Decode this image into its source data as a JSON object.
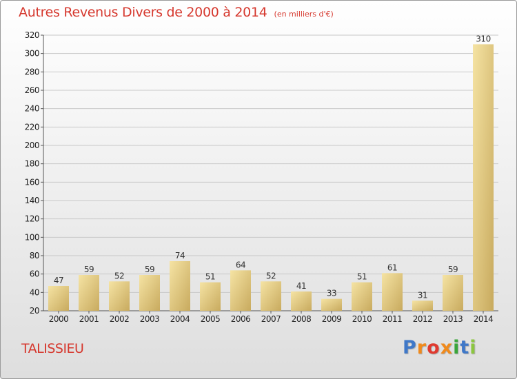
{
  "title": "Autres Revenus Divers de 2000 à 2014",
  "subtitle": "(en milliers d'€)",
  "location": "TALISSIEU",
  "logo_text": "Proxiti",
  "colors": {
    "title": "#d6392f",
    "bar_light": "#f5e3a3",
    "bar_dark": "#c8aa5e",
    "grid": "#c8c8c8",
    "logo": [
      "#3f78c8",
      "#f08a1c",
      "#e03a2f",
      "#f08a1c",
      "#3aa53a",
      "#3f78c8",
      "#8cc63f"
    ]
  },
  "chart_data": {
    "type": "bar",
    "title": "Autres Revenus Divers de 2000 à 2014",
    "subtitle": "(en milliers d'€)",
    "categories": [
      "2000",
      "2001",
      "2002",
      "2003",
      "2004",
      "2005",
      "2006",
      "2007",
      "2008",
      "2009",
      "2010",
      "2011",
      "2012",
      "2013",
      "2014"
    ],
    "values": [
      47,
      59,
      52,
      59,
      74,
      51,
      64,
      52,
      41,
      33,
      51,
      61,
      31,
      59,
      310
    ],
    "ylim": [
      20,
      320
    ],
    "yticks": [
      20,
      40,
      60,
      80,
      100,
      120,
      140,
      160,
      180,
      200,
      220,
      240,
      260,
      280,
      300,
      320
    ],
    "xlabel": "",
    "ylabel": "",
    "grid": true,
    "data_labels": true
  }
}
